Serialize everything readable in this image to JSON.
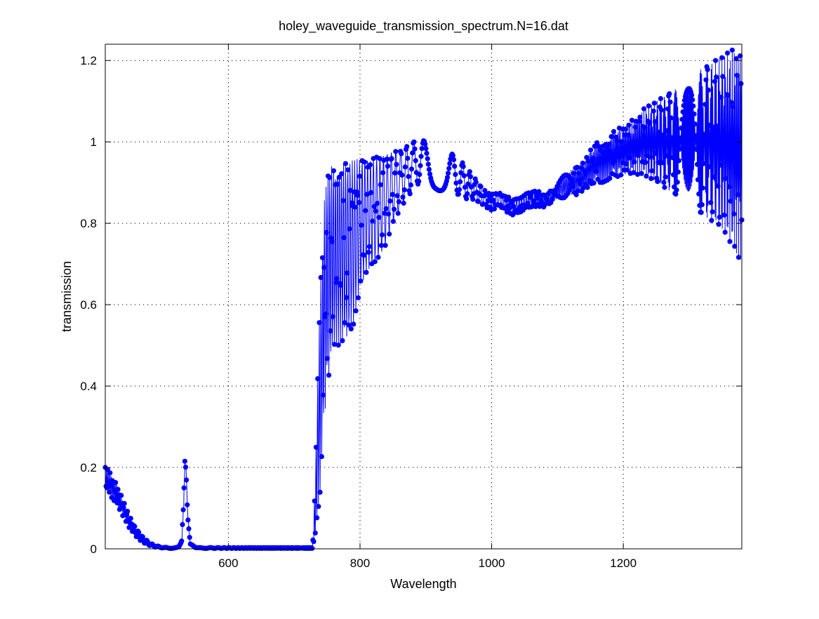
{
  "chart_data": {
    "type": "line",
    "title": "holey_waveguide_transmission_spectrum.N=16.dat",
    "xlabel": "Wavelength",
    "ylabel": "transmission",
    "xlim": [
      413,
      1380
    ],
    "ylim": [
      0,
      1.24
    ],
    "xticks": [
      600,
      800,
      1000,
      1200
    ],
    "yticks": [
      0,
      0.2,
      0.4,
      0.6,
      0.8,
      1,
      1.2
    ],
    "xtick_labels": [
      "600",
      "800",
      "1000",
      "1200"
    ],
    "ytick_labels": [
      "0",
      "0.2",
      "0.4",
      "0.6",
      "0.8",
      "1",
      "1.2"
    ],
    "grid": true,
    "legend": "none",
    "series": [
      {
        "color": "#0000ff",
        "marker": "filled-circle",
        "envelope_description": "densely sampled oscillating spectrum; upper and lower envelope of the oscillation",
        "upper_envelope": {
          "x": [
            413,
            420,
            430,
            440,
            450,
            460,
            470,
            480,
            490,
            500,
            510,
            520,
            525,
            529,
            532,
            534,
            536,
            538,
            542,
            550,
            600,
            650,
            700,
            728,
            732,
            736,
            740,
            745,
            750,
            760,
            770,
            780,
            790,
            800,
            810,
            820,
            830,
            840,
            850,
            860,
            870,
            880,
            890,
            900,
            910,
            920,
            930,
            940,
            950,
            960,
            970,
            980,
            990,
            1000,
            1010,
            1020,
            1030,
            1040,
            1050,
            1060,
            1070,
            1080,
            1090,
            1100,
            1110,
            1120,
            1130,
            1140,
            1150,
            1160,
            1170,
            1180,
            1190,
            1200,
            1210,
            1220,
            1230,
            1240,
            1250,
            1260,
            1270,
            1280,
            1290,
            1300,
            1310,
            1320,
            1330,
            1340,
            1350,
            1360,
            1370,
            1380
          ],
          "y": [
            0.2,
            0.19,
            0.16,
            0.12,
            0.08,
            0.05,
            0.03,
            0.015,
            0.008,
            0.004,
            0.003,
            0.003,
            0.005,
            0.02,
            0.15,
            0.33,
            0.3,
            0.15,
            0.02,
            0.003,
            0.003,
            0.003,
            0.003,
            0.003,
            0.18,
            0.45,
            0.65,
            0.85,
            0.93,
            0.945,
            0.95,
            0.95,
            0.955,
            0.96,
            0.96,
            0.96,
            0.965,
            0.97,
            0.975,
            0.98,
            0.99,
            1.0,
            1.01,
            1.0,
            1.01,
            1.0,
            0.97,
            0.97,
            0.96,
            0.94,
            0.92,
            0.9,
            0.88,
            0.87,
            0.88,
            0.87,
            0.86,
            0.86,
            0.87,
            0.88,
            0.88,
            0.87,
            0.88,
            0.9,
            0.92,
            0.93,
            0.94,
            0.95,
            0.98,
            1.0,
            1.01,
            1.02,
            1.03,
            1.04,
            1.05,
            1.06,
            1.08,
            1.09,
            1.1,
            1.11,
            1.12,
            1.13,
            1.14,
            1.16,
            1.17,
            1.18,
            1.19,
            1.2,
            1.21,
            1.22,
            1.23,
            1.24
          ]
        },
        "lower_envelope": {
          "x": [
            413,
            420,
            430,
            440,
            450,
            460,
            470,
            480,
            490,
            500,
            510,
            520,
            525,
            529,
            532,
            534,
            536,
            538,
            542,
            550,
            600,
            650,
            700,
            728,
            732,
            736,
            740,
            745,
            750,
            760,
            770,
            780,
            790,
            800,
            810,
            820,
            830,
            840,
            850,
            860,
            870,
            880,
            890,
            900,
            910,
            920,
            930,
            940,
            950,
            960,
            970,
            980,
            990,
            1000,
            1010,
            1020,
            1030,
            1040,
            1050,
            1060,
            1070,
            1080,
            1090,
            1100,
            1110,
            1120,
            1130,
            1140,
            1150,
            1160,
            1170,
            1180,
            1190,
            1200,
            1210,
            1220,
            1230,
            1240,
            1250,
            1260,
            1270,
            1280,
            1290,
            1300,
            1310,
            1320,
            1330,
            1340,
            1350,
            1360,
            1370,
            1380
          ],
          "y": [
            0.14,
            0.13,
            0.11,
            0.08,
            0.05,
            0.03,
            0.015,
            0.008,
            0.004,
            0.002,
            0.001,
            0.001,
            0.002,
            0.01,
            0.05,
            0.1,
            0.08,
            0.03,
            0.005,
            0.001,
            0.001,
            0.001,
            0.001,
            0.001,
            0.02,
            0.08,
            0.15,
            0.3,
            0.4,
            0.5,
            0.5,
            0.52,
            0.55,
            0.64,
            0.68,
            0.7,
            0.72,
            0.75,
            0.8,
            0.83,
            0.86,
            0.88,
            0.9,
            0.9,
            0.89,
            0.88,
            0.88,
            0.87,
            0.87,
            0.86,
            0.86,
            0.85,
            0.84,
            0.83,
            0.84,
            0.83,
            0.82,
            0.82,
            0.83,
            0.84,
            0.84,
            0.84,
            0.85,
            0.86,
            0.86,
            0.87,
            0.87,
            0.88,
            0.89,
            0.9,
            0.9,
            0.91,
            0.91,
            0.92,
            0.92,
            0.92,
            0.92,
            0.91,
            0.9,
            0.89,
            0.88,
            0.87,
            0.86,
            0.85,
            0.84,
            0.82,
            0.81,
            0.8,
            0.78,
            0.76,
            0.73,
            0.7
          ]
        }
      }
    ]
  }
}
